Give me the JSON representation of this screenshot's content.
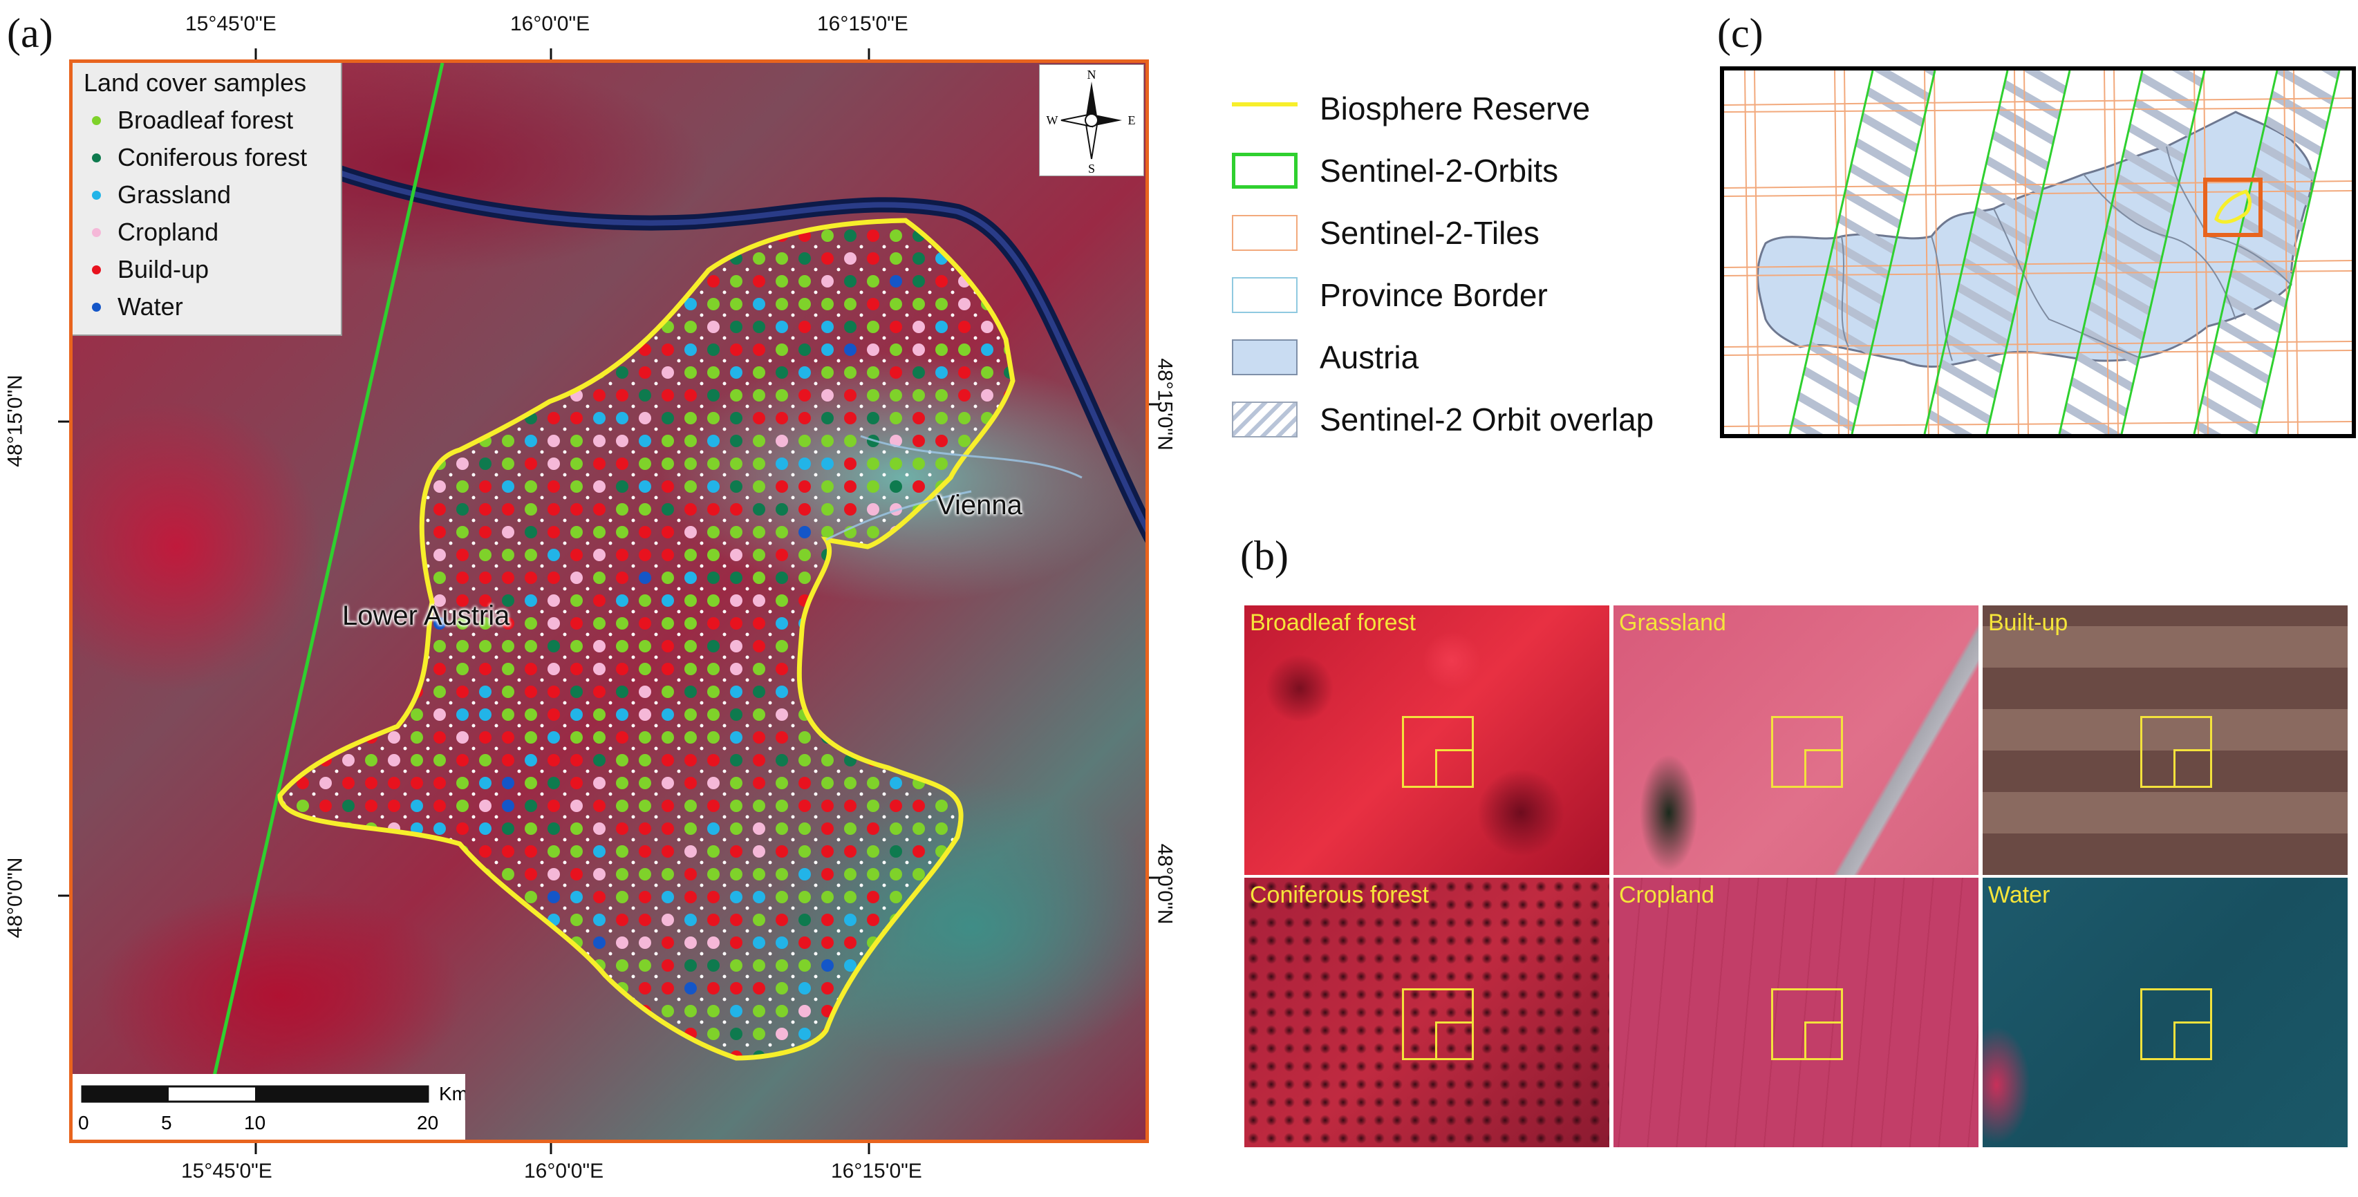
{
  "panels": {
    "a": "(a)",
    "b": "(b)",
    "c": "(c)"
  },
  "map_a": {
    "top_coords": [
      "15°45'0\"E",
      "16°0'0\"E",
      "16°15'0\"E"
    ],
    "bottom_coords": [
      "15°45'0\"E",
      "16°0'0\"E",
      "16°15'0\"E"
    ],
    "left_coords": [
      "48°15'0\"N",
      "48°0'0\"N"
    ],
    "right_coords": [
      "48°15'0\"N",
      "48°0'0\"N"
    ],
    "legend": {
      "title": "Land cover samples",
      "items": [
        {
          "label": "Broadleaf forest",
          "color": "#7fd22a"
        },
        {
          "label": "Coniferous forest",
          "color": "#0e7a4e"
        },
        {
          "label": "Grassland",
          "color": "#22b4e8"
        },
        {
          "label": "Cropland",
          "color": "#f5b8d8"
        },
        {
          "label": "Build-up",
          "color": "#e8121e"
        },
        {
          "label": "Water",
          "color": "#1456c8"
        }
      ]
    },
    "compass": {
      "n": "N",
      "s": "S",
      "e": "E",
      "w": "W"
    },
    "scale": {
      "ticks": [
        "0",
        "5",
        "10",
        "20"
      ],
      "unit": "Km"
    },
    "cities": {
      "vienna": "Vienna",
      "lower_austria": "Lower Austria"
    }
  },
  "legend_main": {
    "items": [
      {
        "label": "Biosphere Reserve",
        "icon": "yellow-line-icon"
      },
      {
        "label": "Sentinel-2-Orbits",
        "icon": "green-box-icon"
      },
      {
        "label": "Sentinel-2-Tiles",
        "icon": "orange-box-icon"
      },
      {
        "label": "Province Border",
        "icon": "blue-outline-box-icon"
      },
      {
        "label": "Austria",
        "icon": "blue-fill-box-icon"
      },
      {
        "label": "Sentinel-2 Orbit overlap",
        "icon": "hatched-box-icon"
      }
    ]
  },
  "tiles": [
    {
      "label": "Broadleaf forest"
    },
    {
      "label": "Grassland"
    },
    {
      "label": "Built-up"
    },
    {
      "label": "Coniferous forest"
    },
    {
      "label": "Cropland"
    },
    {
      "label": "Water"
    }
  ],
  "colors": {
    "reserve": "#f7ef2b",
    "orbit": "#2fd02f",
    "tile_grid": "#f2a97c",
    "austria": "#c9dcf2",
    "frame": "#e8641e"
  }
}
